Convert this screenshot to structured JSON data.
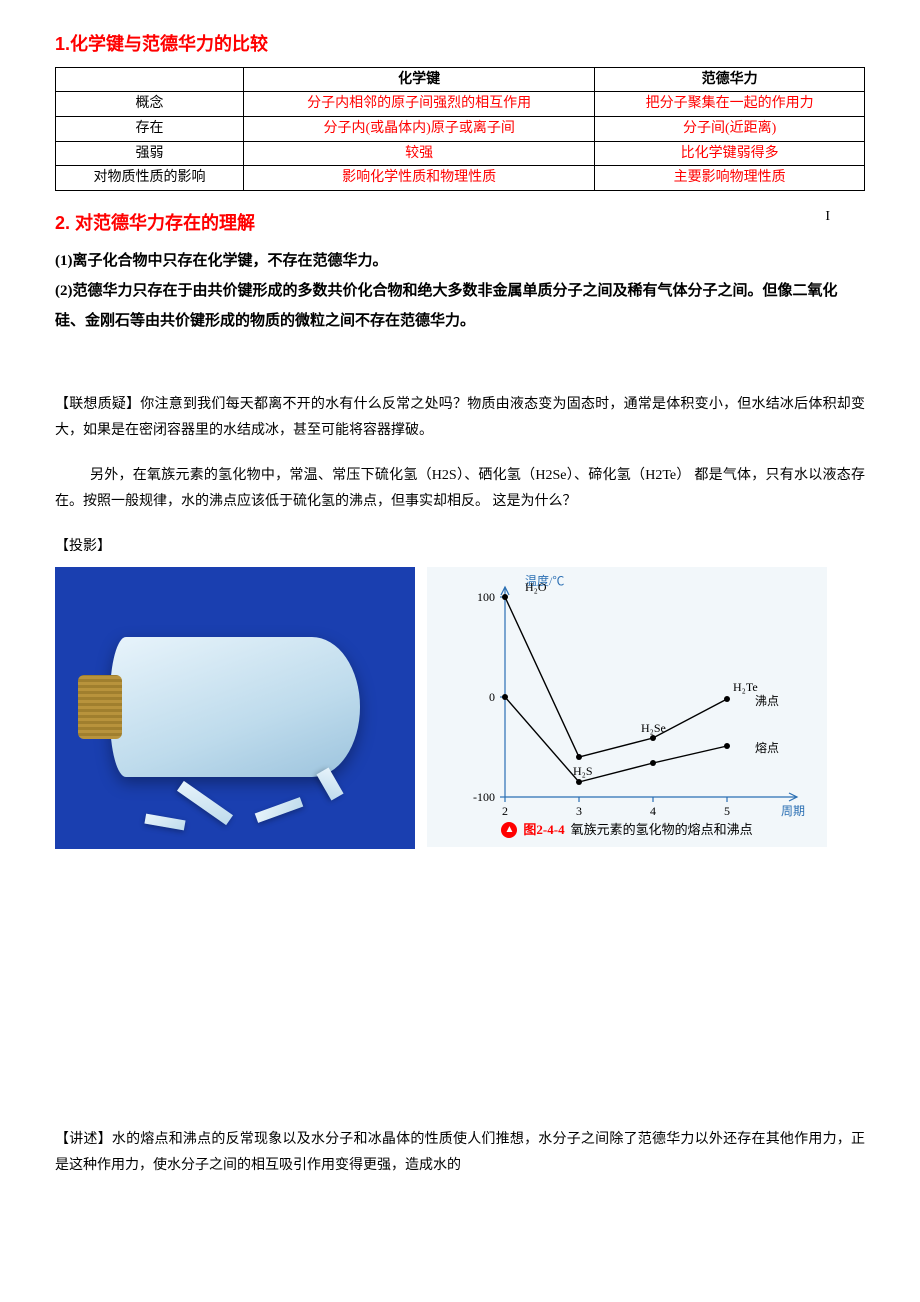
{
  "section1": {
    "heading": "1.化学键与范德华力的比较",
    "table": {
      "columns": [
        "",
        "化学键",
        "范德华力"
      ],
      "rows": [
        {
          "label": "概念",
          "col1": "分子内相邻的原子间强烈的相互作用",
          "col2": "把分子聚集在一起的作用力"
        },
        {
          "label": "存在",
          "col1": "分子内(或晶体内)原子或离子间",
          "col2": "分子间(近距离)"
        },
        {
          "label": "强弱",
          "col1": "较强",
          "col2": "比化学键弱得多"
        },
        {
          "label": "对物质性质的影响",
          "col1": "影响化学性质和物理性质",
          "col2": "主要影响物理性质"
        }
      ]
    }
  },
  "section2": {
    "heading": "2.  对范德华力存在的理解",
    "line1_prefix": "(1)",
    "line1": "离子化合物中只存在化学键，不存在范德华力。",
    "line2_prefix": "(2)",
    "line2": "范德华力只存在于由共价键形成的多数共价化合物和绝大多数非金属单质分子之间及稀有气体分子之间。但像二氧化硅、金刚石等由共价键形成的物质的微粒之间不存在范德华力。",
    "cursor": "I"
  },
  "lianxiang": {
    "tag": "【联想质疑】",
    "text": "你注意到我们每天都离不开的水有什么反常之处吗？物质由液态变为固态时，通常是体积变小，但水结冰后体积却变大，如果是在密闭容器里的水结成冰，甚至可能将容器撑破。"
  },
  "para2": "另外，在氧族元素的氢化物中，常温、常压下硫化氢（H2S）、硒化氢（H2Se）、碲化氢（H2Te）  都是气体，只有水以液态存在。按照一般规律，水的沸点应该低于硫化氢的沸点，但事实却相反。 这是为什么？",
  "touying": "【投影】",
  "chart": {
    "bg": "#f2f7fa",
    "axis_color": "#2b6fb3",
    "y_title": "温度/℃",
    "x_title": "周期",
    "x_ticks": [
      2,
      3,
      4,
      5
    ],
    "y_ticks": [
      -100,
      0,
      100
    ],
    "species": [
      "H₂O",
      "H₂S",
      "H₂Se",
      "H₂Te"
    ],
    "boiling_label": "沸点",
    "melting_label": "熔点",
    "h2o_label": "H₂O",
    "h2s_label": "H₂S",
    "h2se_label": "H₂Se",
    "h2te_label": "H₂Te",
    "boiling_y": [
      100,
      -60,
      -41,
      -2
    ],
    "melting_y": [
      0,
      -85,
      -66,
      -49
    ],
    "caption_num": "图2-4-4",
    "caption_text": "氧族元素的氢化物的熔点和沸点"
  },
  "jiangshu": {
    "tag": "【讲述】",
    "text": "水的熔点和沸点的反常现象以及水分子和冰晶体的性质使人们推想，水分子之间除了范德华力以外还存在其他作用力，正是这种作用力，使水分子之间的相互吸引作用变得更强，造成水的"
  }
}
